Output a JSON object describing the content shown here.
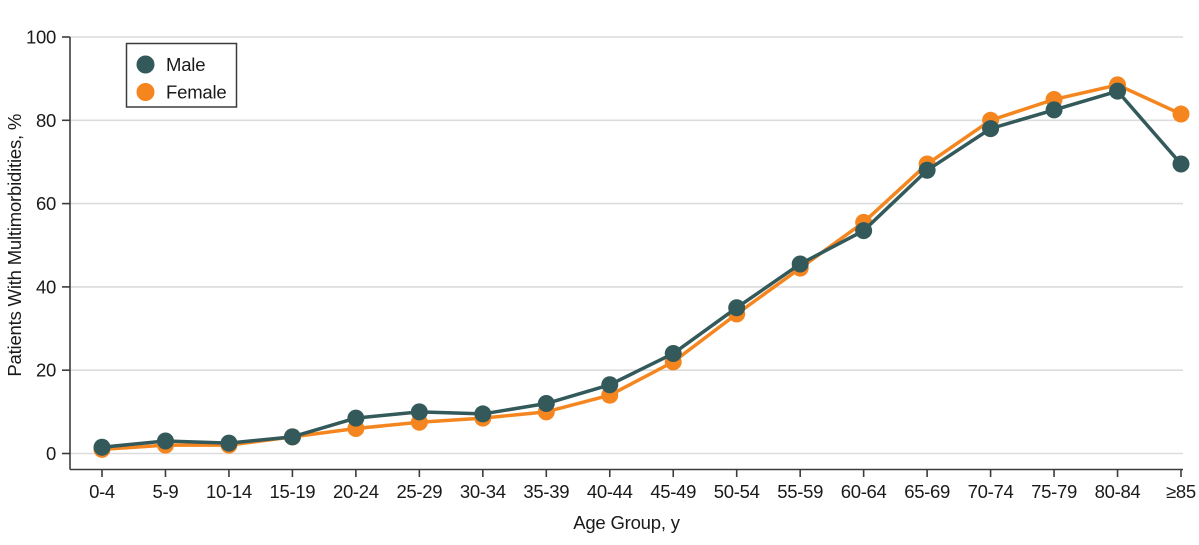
{
  "chart_data": {
    "type": "line",
    "title": "",
    "xlabel": "Age Group, y",
    "ylabel": "Patients With Multimorbidities, %",
    "ylim": [
      0,
      100
    ],
    "yticks": [
      0,
      20,
      40,
      60,
      80,
      100
    ],
    "grid": true,
    "legend_position": "top-left",
    "categories": [
      "0-4",
      "5-9",
      "10-14",
      "15-19",
      "20-24",
      "25-29",
      "30-34",
      "35-39",
      "40-44",
      "45-49",
      "50-54",
      "55-59",
      "60-64",
      "65-69",
      "70-74",
      "75-79",
      "80-84",
      "≥85"
    ],
    "series": [
      {
        "name": "Male",
        "color": "#33595B",
        "values": [
          1.5,
          3,
          2.5,
          4,
          8.5,
          10,
          9.5,
          12,
          16.5,
          24,
          35,
          45.5,
          53.5,
          68,
          78,
          82.5,
          87,
          69.5
        ]
      },
      {
        "name": "Female",
        "color": "#F5861F",
        "values": [
          1,
          2,
          2,
          4,
          6,
          7.5,
          8.5,
          10,
          14,
          22,
          33.5,
          44.5,
          55.5,
          69.5,
          80,
          85,
          88.5,
          81.5
        ]
      }
    ]
  },
  "styles": {
    "grid_color": "#DCDCDC",
    "axis_color": "#3C3C3C",
    "text_color": "#1A1A1A",
    "legend_border_color": "#3C3C3C",
    "background": "#FFFFFF"
  }
}
